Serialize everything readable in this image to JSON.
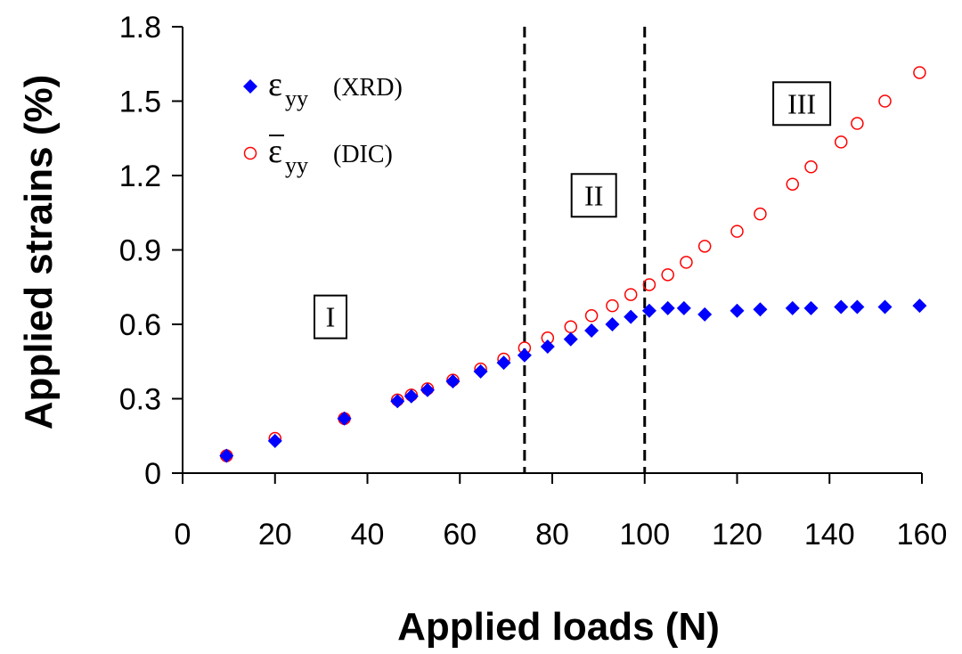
{
  "chart_data": {
    "type": "scatter",
    "xlabel": "Applied loads (N)",
    "ylabel": "Applied strains (%)",
    "xlim": [
      0,
      160
    ],
    "ylim": [
      0,
      1.8
    ],
    "xticks": [
      "0",
      "20",
      "40",
      "60",
      "80",
      "100",
      "120",
      "140",
      "160"
    ],
    "yticks": [
      "0",
      "0.3",
      "0.6",
      "0.9",
      "1.2",
      "1.5",
      "1.8"
    ],
    "grid": false,
    "legend_position": "top-left",
    "series": [
      {
        "name": "ε_yy (XRD)",
        "legend_symbol": "ε",
        "legend_subscript": "yy",
        "legend_source": "(XRD)",
        "marker": "filled-diamond",
        "color": "#0000ff",
        "x": [
          9.5,
          20,
          35,
          46.5,
          49.5,
          53,
          58.5,
          64.5,
          69.5,
          74,
          79,
          84,
          88.5,
          93,
          97,
          101,
          105,
          108.5,
          113,
          120,
          125,
          132,
          136,
          142.5,
          146,
          152,
          159.5
        ],
        "y": [
          0.07,
          0.13,
          0.22,
          0.29,
          0.31,
          0.335,
          0.37,
          0.41,
          0.445,
          0.475,
          0.51,
          0.54,
          0.575,
          0.6,
          0.63,
          0.655,
          0.665,
          0.665,
          0.64,
          0.655,
          0.66,
          0.665,
          0.665,
          0.67,
          0.67,
          0.67,
          0.675
        ]
      },
      {
        "name": "ε̄_yy (DIC)",
        "legend_symbol": "ε",
        "legend_subscript": "yy",
        "legend_source": "(DIC)",
        "marker": "open-circle",
        "color": "#ff0000",
        "x": [
          9.5,
          20,
          35,
          46.5,
          49.5,
          53,
          58.5,
          64.5,
          69.5,
          74,
          79,
          84,
          88.5,
          93,
          97,
          101,
          105,
          109,
          113,
          120,
          125,
          132,
          136,
          142.5,
          146,
          152,
          159.5
        ],
        "y": [
          0.07,
          0.14,
          0.22,
          0.295,
          0.315,
          0.34,
          0.375,
          0.42,
          0.46,
          0.505,
          0.545,
          0.59,
          0.635,
          0.675,
          0.72,
          0.76,
          0.8,
          0.85,
          0.915,
          0.975,
          1.045,
          1.165,
          1.235,
          1.335,
          1.41,
          1.5,
          1.615
        ]
      }
    ],
    "vlines": [
      {
        "x": 74,
        "style": "dashed",
        "color": "#000000"
      },
      {
        "x": 100,
        "style": "dashed",
        "color": "#000000"
      }
    ],
    "annotations": [
      {
        "text": "I",
        "x": 32,
        "y": 0.63
      },
      {
        "text": "II",
        "x": 89,
        "y": 1.12
      },
      {
        "text": "III",
        "x": 134,
        "y": 1.49
      }
    ]
  }
}
